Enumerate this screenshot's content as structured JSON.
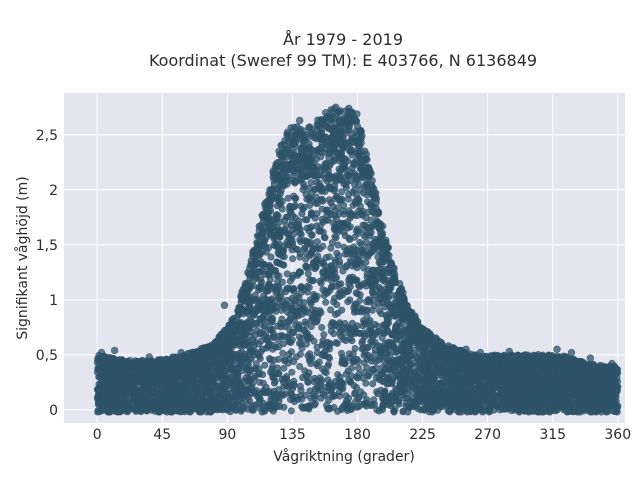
{
  "chart_data": {
    "type": "scatter",
    "title_lines": [
      "År 1979 - 2019",
      "Koordinat (Sweref 99 TM): E 403766, N 6136849"
    ],
    "xlabel": "Vågriktning (grader)",
    "ylabel": "Signifikant våghöjd (m)",
    "xlim": [
      -23,
      365
    ],
    "ylim": [
      -0.12,
      2.88
    ],
    "x_ticks": [
      0,
      45,
      90,
      135,
      180,
      225,
      270,
      315,
      360
    ],
    "x_tick_labels": [
      "0",
      "45",
      "90",
      "135",
      "180",
      "225",
      "270",
      "315",
      "360"
    ],
    "y_ticks": [
      0,
      0.5,
      1,
      1.5,
      2,
      2.5
    ],
    "y_tick_labels": [
      "0",
      "0,5",
      "1",
      "1,5",
      "2",
      "2,5"
    ],
    "grid": true,
    "marker_color": "#2e5369",
    "background_color": "#e5e5f0",
    "envelope": {
      "direction": [
        0,
        20,
        40,
        60,
        80,
        95,
        105,
        115,
        125,
        135,
        145,
        155,
        165,
        175,
        180,
        185,
        195,
        205,
        215,
        225,
        240,
        260,
        280,
        300,
        320,
        340,
        360
      ],
      "max_height": [
        0.5,
        0.45,
        0.45,
        0.5,
        0.6,
        0.85,
        1.3,
        1.85,
        2.35,
        2.62,
        2.55,
        2.7,
        2.75,
        2.72,
        2.7,
        2.4,
        1.85,
        1.3,
        0.95,
        0.75,
        0.6,
        0.5,
        0.5,
        0.5,
        0.5,
        0.42,
        0.4
      ]
    },
    "outliers": [
      {
        "x": 3,
        "y": 0.52
      },
      {
        "x": 12,
        "y": 0.54
      },
      {
        "x": 36,
        "y": 0.48
      },
      {
        "x": 58,
        "y": 0.52
      },
      {
        "x": 88,
        "y": 0.95
      },
      {
        "x": 104,
        "y": 0.75
      },
      {
        "x": 228,
        "y": 0.68
      },
      {
        "x": 243,
        "y": 0.58
      },
      {
        "x": 255,
        "y": 0.55
      },
      {
        "x": 265,
        "y": 0.52
      },
      {
        "x": 285,
        "y": 0.53
      },
      {
        "x": 305,
        "y": 0.5
      },
      {
        "x": 318,
        "y": 0.55
      },
      {
        "x": 328,
        "y": 0.52
      },
      {
        "x": 341,
        "y": 0.47
      },
      {
        "x": 356,
        "y": 0.42
      },
      {
        "x": 140,
        "y": 2.63
      },
      {
        "x": 158,
        "y": 2.7
      },
      {
        "x": 165,
        "y": 2.75
      },
      {
        "x": 174,
        "y": 2.74
      }
    ]
  }
}
